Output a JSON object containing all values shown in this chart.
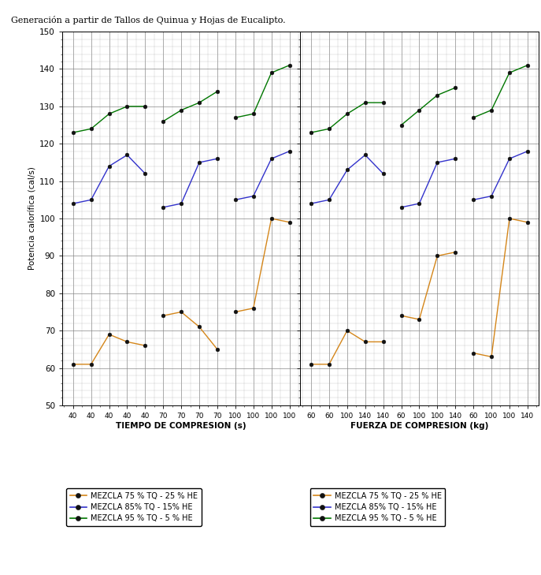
{
  "left_xlabel": "TIEMPO DE COMPRESION (s)",
  "right_xlabel": "FUERZA DE COMPRESION (kg)",
  "ylabel": "Potencia calorífica (cal/s)",
  "ylim": [
    50,
    150
  ],
  "yticks": [
    50,
    60,
    70,
    80,
    90,
    100,
    110,
    120,
    130,
    140,
    150
  ],
  "legend_labels": [
    "MEZCLA 75 % TQ - 25 % HE",
    "MEZCLA 85% TQ - 15% HE",
    "MEZCLA 95 % TQ - 5 % HE"
  ],
  "colors": [
    "#D4861A",
    "#3333CC",
    "#007700"
  ],
  "left_xtick_labels": [
    "40",
    "40",
    "40",
    "40",
    "40",
    "70",
    "70",
    "70",
    "70",
    "100",
    "100",
    "100",
    "100"
  ],
  "right_xtick_labels": [
    "60",
    "60",
    "100",
    "140",
    "140",
    "60",
    "100",
    "100",
    "140",
    "60",
    "100",
    "100",
    "140"
  ],
  "left_orange_groups": [
    [
      0,
      1,
      2,
      3,
      4
    ],
    [
      5,
      6,
      7,
      8
    ],
    [
      9,
      10,
      11,
      12
    ]
  ],
  "left_orange_y": [
    [
      61,
      61,
      69,
      67,
      66
    ],
    [
      74,
      75,
      71,
      65
    ],
    [
      75,
      76,
      100,
      99
    ]
  ],
  "left_blue_groups": [
    [
      0,
      1,
      2,
      3,
      4
    ],
    [
      5,
      6,
      7,
      8
    ],
    [
      9,
      10,
      11,
      12
    ]
  ],
  "left_blue_y": [
    [
      104,
      105,
      114,
      117,
      112
    ],
    [
      103,
      104,
      115,
      116
    ],
    [
      105,
      106,
      116,
      118
    ]
  ],
  "left_green_groups": [
    [
      0,
      1,
      2,
      3,
      4
    ],
    [
      5,
      6,
      7,
      8
    ],
    [
      9,
      10,
      11,
      12
    ]
  ],
  "left_green_y": [
    [
      123,
      124,
      128,
      130,
      130
    ],
    [
      126,
      129,
      131,
      134
    ],
    [
      127,
      128,
      139,
      141
    ]
  ],
  "right_orange_groups": [
    [
      0,
      1,
      2,
      3,
      4
    ],
    [
      5,
      6,
      7,
      8
    ],
    [
      9,
      10,
      11,
      12
    ]
  ],
  "right_orange_y": [
    [
      61,
      61,
      70,
      67,
      67
    ],
    [
      74,
      73,
      90,
      91
    ],
    [
      64,
      63,
      100,
      99
    ]
  ],
  "right_blue_groups": [
    [
      0,
      1,
      2,
      3,
      4
    ],
    [
      5,
      6,
      7,
      8
    ],
    [
      9,
      10,
      11,
      12
    ]
  ],
  "right_blue_y": [
    [
      104,
      105,
      113,
      117,
      112
    ],
    [
      103,
      104,
      115,
      116
    ],
    [
      105,
      106,
      116,
      118
    ]
  ],
  "right_green_groups": [
    [
      0,
      1,
      2,
      3,
      4
    ],
    [
      5,
      6,
      7,
      8
    ],
    [
      9,
      10,
      11,
      12
    ]
  ],
  "right_green_y": [
    [
      123,
      124,
      128,
      131,
      131
    ],
    [
      125,
      129,
      133,
      135
    ],
    [
      127,
      129,
      139,
      141
    ]
  ],
  "header_text": "Generación a partir de Tallos de Quinua y Hojas de Eucalipto.",
  "figsize": [
    6.87,
    7.29
  ],
  "dpi": 100
}
